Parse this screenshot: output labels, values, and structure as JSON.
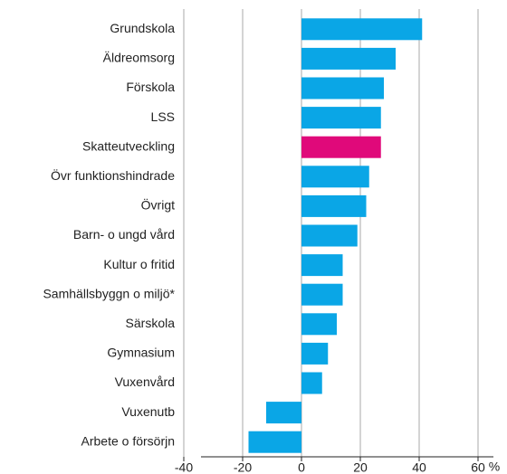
{
  "chart_data": {
    "type": "bar",
    "orientation": "horizontal",
    "categories": [
      "Grundskola",
      "Äldreomsorg",
      "Förskola",
      "LSS",
      "Skatteutveckling",
      "Övr funktionshindrade",
      "Övrigt",
      "Barn- o ungd vård",
      "Kultur o fritid",
      "Samhällsbyggn o miljö*",
      "Särskola",
      "Gymnasium",
      "Vuxenvård",
      "Vuxenutb",
      "Arbete o försörjn"
    ],
    "values": [
      41,
      32,
      28,
      27,
      27,
      23,
      22,
      19,
      14,
      14,
      12,
      9,
      7,
      -12,
      -18
    ],
    "colors": [
      "#0aa6e6",
      "#0aa6e6",
      "#0aa6e6",
      "#0aa6e6",
      "#e0097a",
      "#0aa6e6",
      "#0aa6e6",
      "#0aa6e6",
      "#0aa6e6",
      "#0aa6e6",
      "#0aa6e6",
      "#0aa6e6",
      "#0aa6e6",
      "#0aa6e6",
      "#0aa6e6"
    ],
    "xlim": [
      -40,
      60
    ],
    "xticks": [
      -40,
      -20,
      0,
      20,
      40,
      60
    ],
    "x_unit": "%",
    "grid": true
  }
}
